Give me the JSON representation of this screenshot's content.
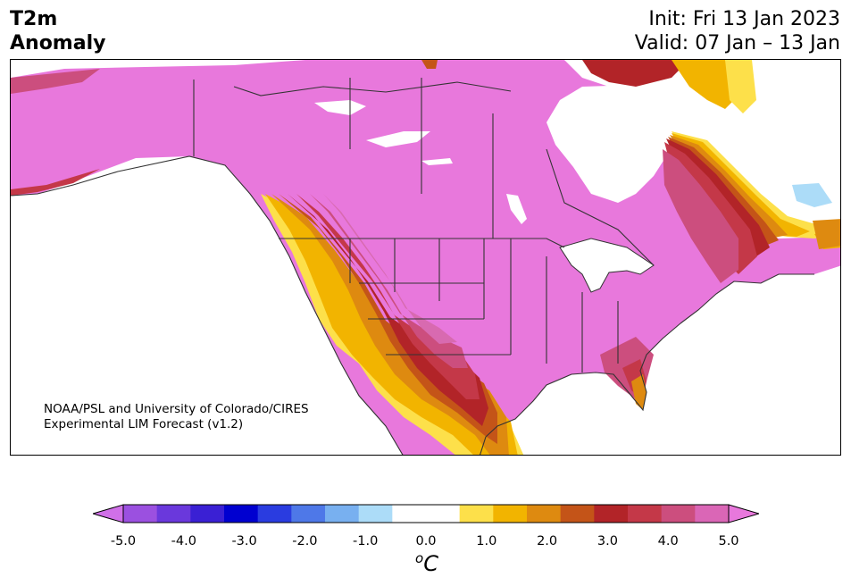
{
  "title": {
    "left_line1": "T2m",
    "left_line2": "Anomaly",
    "right_line1": "Init: Fri 13 Jan 2023",
    "right_line2": "Valid: 07 Jan – 13 Jan"
  },
  "credit": {
    "line1": "NOAA/PSL and University of Colorado/CIRES",
    "line2": "Experimental LIM Forecast (v1.2)"
  },
  "colorbar": {
    "ticks": [
      "-5.0",
      "-4.0",
      "-3.0",
      "-2.0",
      "-1.0",
      "0.0",
      "1.0",
      "2.0",
      "3.0",
      "4.0",
      "5.0"
    ],
    "unit_prefix": "o",
    "unit": "C",
    "colors": [
      "#d070e8",
      "#9b50e0",
      "#6a38dc",
      "#3a20d4",
      "#0000d0",
      "#2a3ce0",
      "#4e78e8",
      "#78b0f0",
      "#acdcf8",
      "#ffffff",
      "#ffffff",
      "#fde04a",
      "#f2b400",
      "#de8a10",
      "#c45418",
      "#b22428",
      "#c43848",
      "#cc4e7e",
      "#da66b6",
      "#e878dc"
    ]
  },
  "map": {
    "region": "North America",
    "palette": {
      "max": "#e878dc",
      "mauve": "#d86ab0",
      "rose": "#cc4e7e",
      "crimson": "#c43848",
      "red": "#b22428",
      "rust": "#c45418",
      "orange": "#de8a10",
      "amber": "#f2b400",
      "yellow": "#fde04a",
      "lightblue": "#acdcf8",
      "border": "#333333"
    }
  }
}
